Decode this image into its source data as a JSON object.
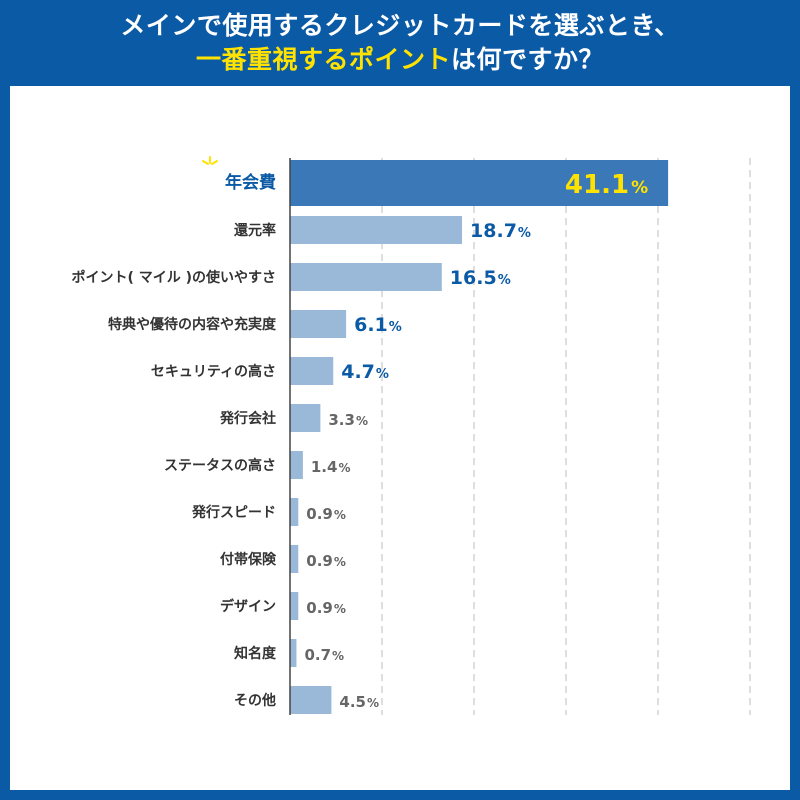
{
  "header": {
    "line1": "メインで使用するクレジットカードを選ぶとき、",
    "line2_highlight": "一番重視するポイント",
    "line2_rest": "は何ですか？"
  },
  "colors": {
    "brand_blue": "#0b5aa5",
    "highlight_bar": "#3a78b8",
    "bar": "#9ab8d8",
    "title_yellow": "#ffe200"
  },
  "chart_data": {
    "type": "bar",
    "orientation": "horizontal",
    "title": "メインで使用するクレジットカードを選ぶとき、一番重視するポイントは何ですか？",
    "unit": "%",
    "xlim": [
      0,
      50
    ],
    "grid": true,
    "highlighted_category": "年会費",
    "categories": [
      "年会費",
      "還元率",
      "ポイント( マイル )の使いやすさ",
      "特典や優待の内容や充実度",
      "セキュリティの高さ",
      "発行会社",
      "ステータスの高さ",
      "発行スピード",
      "付帯保険",
      "デザイン",
      "知名度",
      "その他"
    ],
    "values": [
      41.1,
      18.7,
      16.5,
      6.1,
      4.7,
      3.3,
      1.4,
      0.9,
      0.9,
      0.9,
      0.7,
      4.5
    ],
    "value_labels": [
      "41.1",
      "18.7",
      "16.5",
      "6.1",
      "4.7",
      "3.3",
      "1.4",
      "0.9",
      "0.9",
      "0.9",
      "0.7",
      "4.5"
    ]
  }
}
